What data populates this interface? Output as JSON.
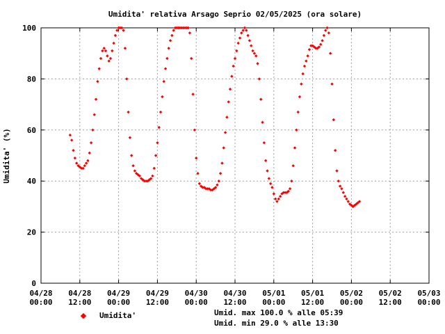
{
  "chart_data": {
    "type": "scatter",
    "title": "Umidita' relativa Arsago Seprio 02/05/2025 (ora solare)",
    "ylabel": "Umidita' (%)",
    "xlabel": "",
    "ylim": [
      0,
      100
    ],
    "xlim": [
      0,
      120
    ],
    "x_unit": "hours since 04/28 00:00",
    "grid": true,
    "yticks": [
      0,
      20,
      40,
      60,
      80,
      100
    ],
    "xticks": [
      {
        "pos": 0,
        "l1": "04/28",
        "l2": "00:00"
      },
      {
        "pos": 12,
        "l1": "04/28",
        "l2": "12:00"
      },
      {
        "pos": 24,
        "l1": "04/29",
        "l2": "00:00"
      },
      {
        "pos": 36,
        "l1": "04/29",
        "l2": "12:00"
      },
      {
        "pos": 48,
        "l1": "04/30",
        "l2": "00:00"
      },
      {
        "pos": 60,
        "l1": "04/30",
        "l2": "12:00"
      },
      {
        "pos": 72,
        "l1": "05/01",
        "l2": "00:00"
      },
      {
        "pos": 84,
        "l1": "05/01",
        "l2": "12:00"
      },
      {
        "pos": 96,
        "l1": "05/02",
        "l2": "00:00"
      },
      {
        "pos": 108,
        "l1": "05/02",
        "l2": "12:00"
      },
      {
        "pos": 120,
        "l1": "05/03",
        "l2": "00:00"
      }
    ],
    "series": [
      {
        "name": "Umidita'",
        "color": "#ff0000",
        "marker": "diamond",
        "points": [
          [
            9.0,
            58
          ],
          [
            9.5,
            56
          ],
          [
            10.0,
            52
          ],
          [
            10.5,
            49
          ],
          [
            11.0,
            47
          ],
          [
            11.5,
            46
          ],
          [
            12.0,
            45.5
          ],
          [
            12.5,
            45
          ],
          [
            13.0,
            45
          ],
          [
            13.5,
            46
          ],
          [
            14.0,
            47
          ],
          [
            14.5,
            48
          ],
          [
            15.0,
            51
          ],
          [
            15.5,
            55
          ],
          [
            16.0,
            60
          ],
          [
            16.5,
            66
          ],
          [
            17.0,
            72
          ],
          [
            17.5,
            79
          ],
          [
            18.0,
            84
          ],
          [
            18.5,
            88
          ],
          [
            19.0,
            91
          ],
          [
            19.5,
            92
          ],
          [
            20.0,
            91
          ],
          [
            20.5,
            89
          ],
          [
            21.0,
            87
          ],
          [
            21.5,
            88
          ],
          [
            22.0,
            91
          ],
          [
            22.5,
            94
          ],
          [
            23.0,
            97
          ],
          [
            23.5,
            99
          ],
          [
            24.0,
            100
          ],
          [
            24.5,
            100
          ],
          [
            25.0,
            100
          ],
          [
            25.5,
            99
          ],
          [
            26.0,
            92
          ],
          [
            26.5,
            80
          ],
          [
            27.0,
            67
          ],
          [
            27.5,
            57
          ],
          [
            28.0,
            50
          ],
          [
            28.5,
            46
          ],
          [
            29.0,
            44
          ],
          [
            29.5,
            43
          ],
          [
            30.0,
            42.5
          ],
          [
            30.5,
            42
          ],
          [
            31.0,
            41
          ],
          [
            31.5,
            40.5
          ],
          [
            32.0,
            40
          ],
          [
            32.5,
            40
          ],
          [
            33.0,
            40
          ],
          [
            33.5,
            40.5
          ],
          [
            34.0,
            41
          ],
          [
            34.5,
            42
          ],
          [
            35.0,
            45
          ],
          [
            35.5,
            50
          ],
          [
            36.0,
            55
          ],
          [
            36.5,
            61
          ],
          [
            37.0,
            67
          ],
          [
            37.5,
            73
          ],
          [
            38.0,
            79
          ],
          [
            38.5,
            84
          ],
          [
            39.0,
            88
          ],
          [
            39.5,
            92
          ],
          [
            40.0,
            95
          ],
          [
            40.5,
            97
          ],
          [
            41.0,
            99
          ],
          [
            41.5,
            100
          ],
          [
            42.0,
            100
          ],
          [
            42.5,
            100
          ],
          [
            43.0,
            100
          ],
          [
            43.5,
            100
          ],
          [
            44.0,
            100
          ],
          [
            44.5,
            100
          ],
          [
            45.0,
            100
          ],
          [
            45.5,
            100
          ],
          [
            46.0,
            98
          ],
          [
            46.5,
            88
          ],
          [
            47.0,
            74
          ],
          [
            47.5,
            60
          ],
          [
            48.0,
            49
          ],
          [
            48.5,
            43
          ],
          [
            49.0,
            39
          ],
          [
            49.5,
            38
          ],
          [
            50.0,
            37.5
          ],
          [
            50.5,
            37.5
          ],
          [
            51.0,
            37
          ],
          [
            51.5,
            37
          ],
          [
            52.0,
            37
          ],
          [
            52.5,
            36.5
          ],
          [
            53.0,
            36.5
          ],
          [
            53.5,
            37
          ],
          [
            54.0,
            37.5
          ],
          [
            54.5,
            38.5
          ],
          [
            55.0,
            40
          ],
          [
            55.5,
            43
          ],
          [
            56.0,
            47
          ],
          [
            56.5,
            53
          ],
          [
            57.0,
            59
          ],
          [
            57.5,
            65
          ],
          [
            58.0,
            71
          ],
          [
            58.5,
            76
          ],
          [
            59.0,
            81
          ],
          [
            59.5,
            85
          ],
          [
            60.0,
            88
          ],
          [
            60.5,
            91
          ],
          [
            61.0,
            94
          ],
          [
            61.5,
            96
          ],
          [
            62.0,
            98
          ],
          [
            62.5,
            99
          ],
          [
            63.0,
            100
          ],
          [
            63.5,
            99
          ],
          [
            64.0,
            97
          ],
          [
            64.5,
            95
          ],
          [
            65.0,
            93
          ],
          [
            65.5,
            91
          ],
          [
            66.0,
            90
          ],
          [
            66.5,
            89
          ],
          [
            67.0,
            86
          ],
          [
            67.5,
            80
          ],
          [
            68.0,
            72
          ],
          [
            68.5,
            63
          ],
          [
            69.0,
            55
          ],
          [
            69.5,
            48
          ],
          [
            70.0,
            44
          ],
          [
            70.5,
            41
          ],
          [
            71.0,
            39
          ],
          [
            71.5,
            37.5
          ],
          [
            72.0,
            35
          ],
          [
            72.5,
            33
          ],
          [
            73.0,
            32
          ],
          [
            73.5,
            33
          ],
          [
            74.0,
            34
          ],
          [
            74.5,
            35
          ],
          [
            75.0,
            35.5
          ],
          [
            75.5,
            35.5
          ],
          [
            76.0,
            35.5
          ],
          [
            76.5,
            36
          ],
          [
            77.0,
            37
          ],
          [
            77.5,
            40
          ],
          [
            78.0,
            46
          ],
          [
            78.5,
            53
          ],
          [
            79.0,
            60
          ],
          [
            79.5,
            67
          ],
          [
            80.0,
            73
          ],
          [
            80.5,
            78
          ],
          [
            81.0,
            82
          ],
          [
            81.5,
            85
          ],
          [
            82.0,
            87
          ],
          [
            82.5,
            89
          ],
          [
            83.0,
            91.5
          ],
          [
            83.5,
            93
          ],
          [
            84.0,
            93
          ],
          [
            84.5,
            92.5
          ],
          [
            85.0,
            92
          ],
          [
            85.5,
            92
          ],
          [
            86.0,
            92.5
          ],
          [
            86.5,
            93.5
          ],
          [
            87.0,
            95
          ],
          [
            87.5,
            97
          ],
          [
            88.0,
            99
          ],
          [
            88.5,
            100
          ],
          [
            89.0,
            98
          ],
          [
            89.5,
            90
          ],
          [
            90.0,
            78
          ],
          [
            90.5,
            64
          ],
          [
            91.0,
            52
          ],
          [
            91.5,
            44
          ],
          [
            92.0,
            40
          ],
          [
            92.5,
            38
          ],
          [
            93.0,
            37
          ],
          [
            93.5,
            35.5
          ],
          [
            94.0,
            34
          ],
          [
            94.5,
            33
          ],
          [
            95.0,
            32
          ],
          [
            95.5,
            31
          ],
          [
            96.0,
            30.5
          ],
          [
            96.5,
            30
          ],
          [
            97.0,
            30.5
          ],
          [
            97.5,
            31
          ],
          [
            98.0,
            31.5
          ],
          [
            98.5,
            32
          ]
        ]
      }
    ],
    "legend": {
      "placement": "bottom-left",
      "label": "Umidita'"
    },
    "annotations": [
      "Umid. max 100.0 % alle 05:39",
      "Umid. min 29.0 % alle 13:30"
    ]
  }
}
